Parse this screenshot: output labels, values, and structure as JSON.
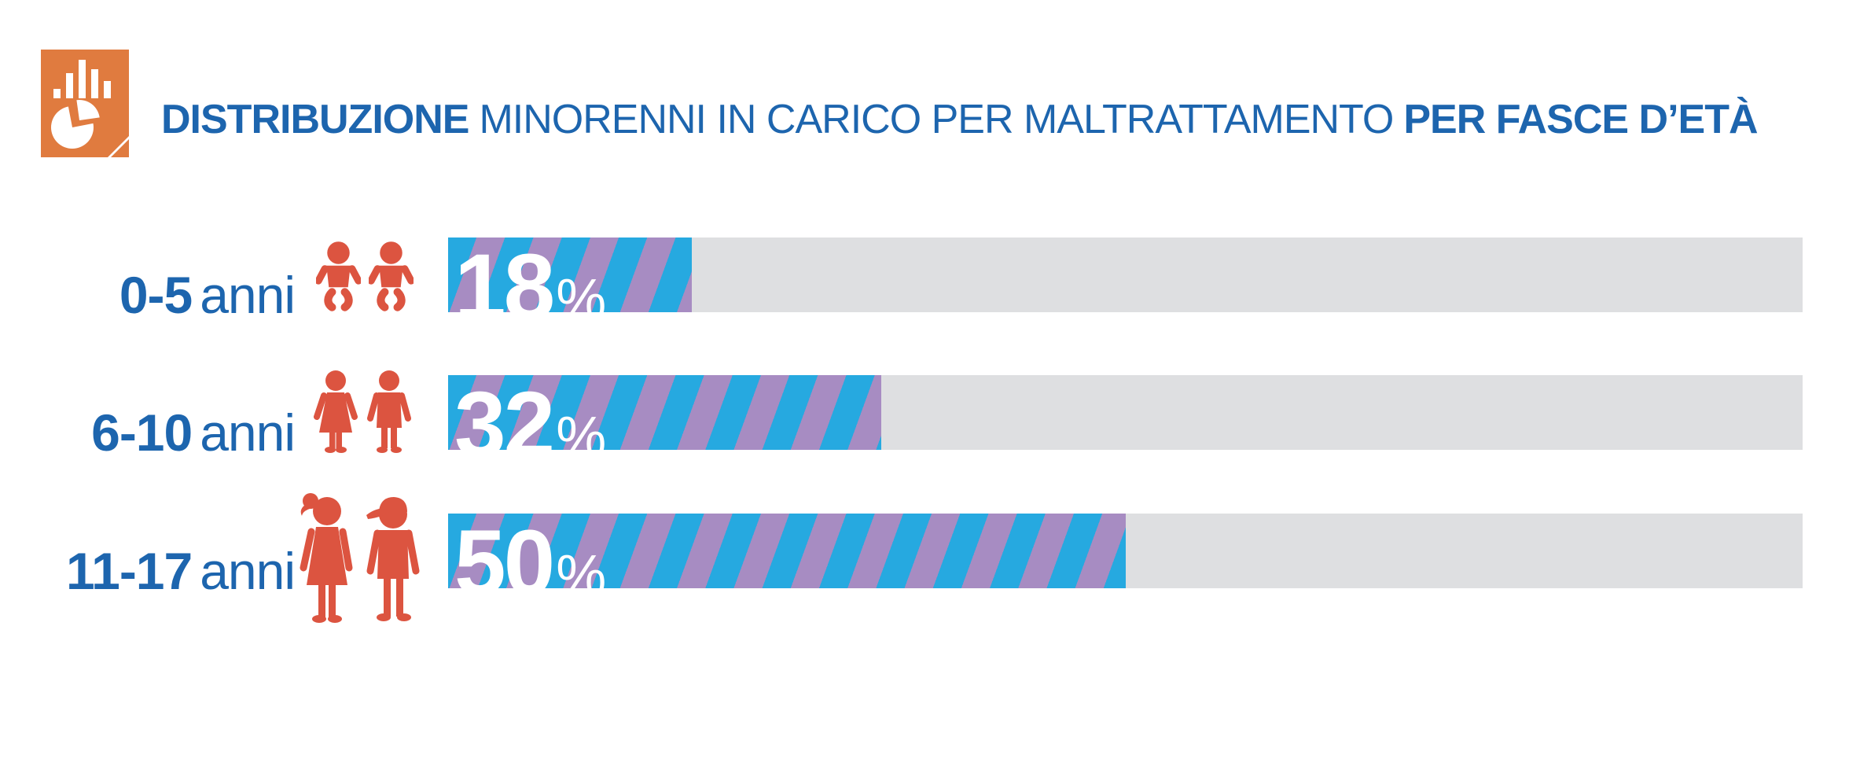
{
  "title": {
    "bold_lead": "DISTRIBUZIONE",
    "regular_middle": "MINORENNI IN CARICO PER MALTRATTAMENTO",
    "bold_tail": "PER FASCE D’ETÀ"
  },
  "logo": {
    "icon": "bar-and-pie-chart-document-icon"
  },
  "colors": {
    "title_blue": "#1D65AE",
    "logo_orange": "#E07B3F",
    "figure_red": "#DC5440",
    "stripe_cyan": "#26A9E0",
    "stripe_purple": "#A78CC2",
    "track_gray": "#DEDFE1",
    "value_text": "#FFFFFF"
  },
  "chart_data": {
    "type": "bar",
    "orientation": "horizontal",
    "title": "DISTRIBUZIONE MINORENNI IN CARICO PER MALTRATTAMENTO PER FASCE D’ETÀ",
    "categories": [
      "0-5 anni",
      "6-10 anni",
      "11-17 anni"
    ],
    "values": [
      18,
      32,
      50
    ],
    "unit": "%",
    "xlim": [
      0,
      100
    ],
    "grid": false,
    "legend": false,
    "rows": [
      {
        "range": "0-5",
        "unit": "anni",
        "value": 18,
        "percent_symbol": "%",
        "icon": "two-babies-icon"
      },
      {
        "range": "6-10",
        "unit": "anni",
        "value": 32,
        "percent_symbol": "%",
        "icon": "two-children-icon"
      },
      {
        "range": "11-17",
        "unit": "anni",
        "value": 50,
        "percent_symbol": "%",
        "icon": "two-teenagers-icon"
      }
    ]
  }
}
